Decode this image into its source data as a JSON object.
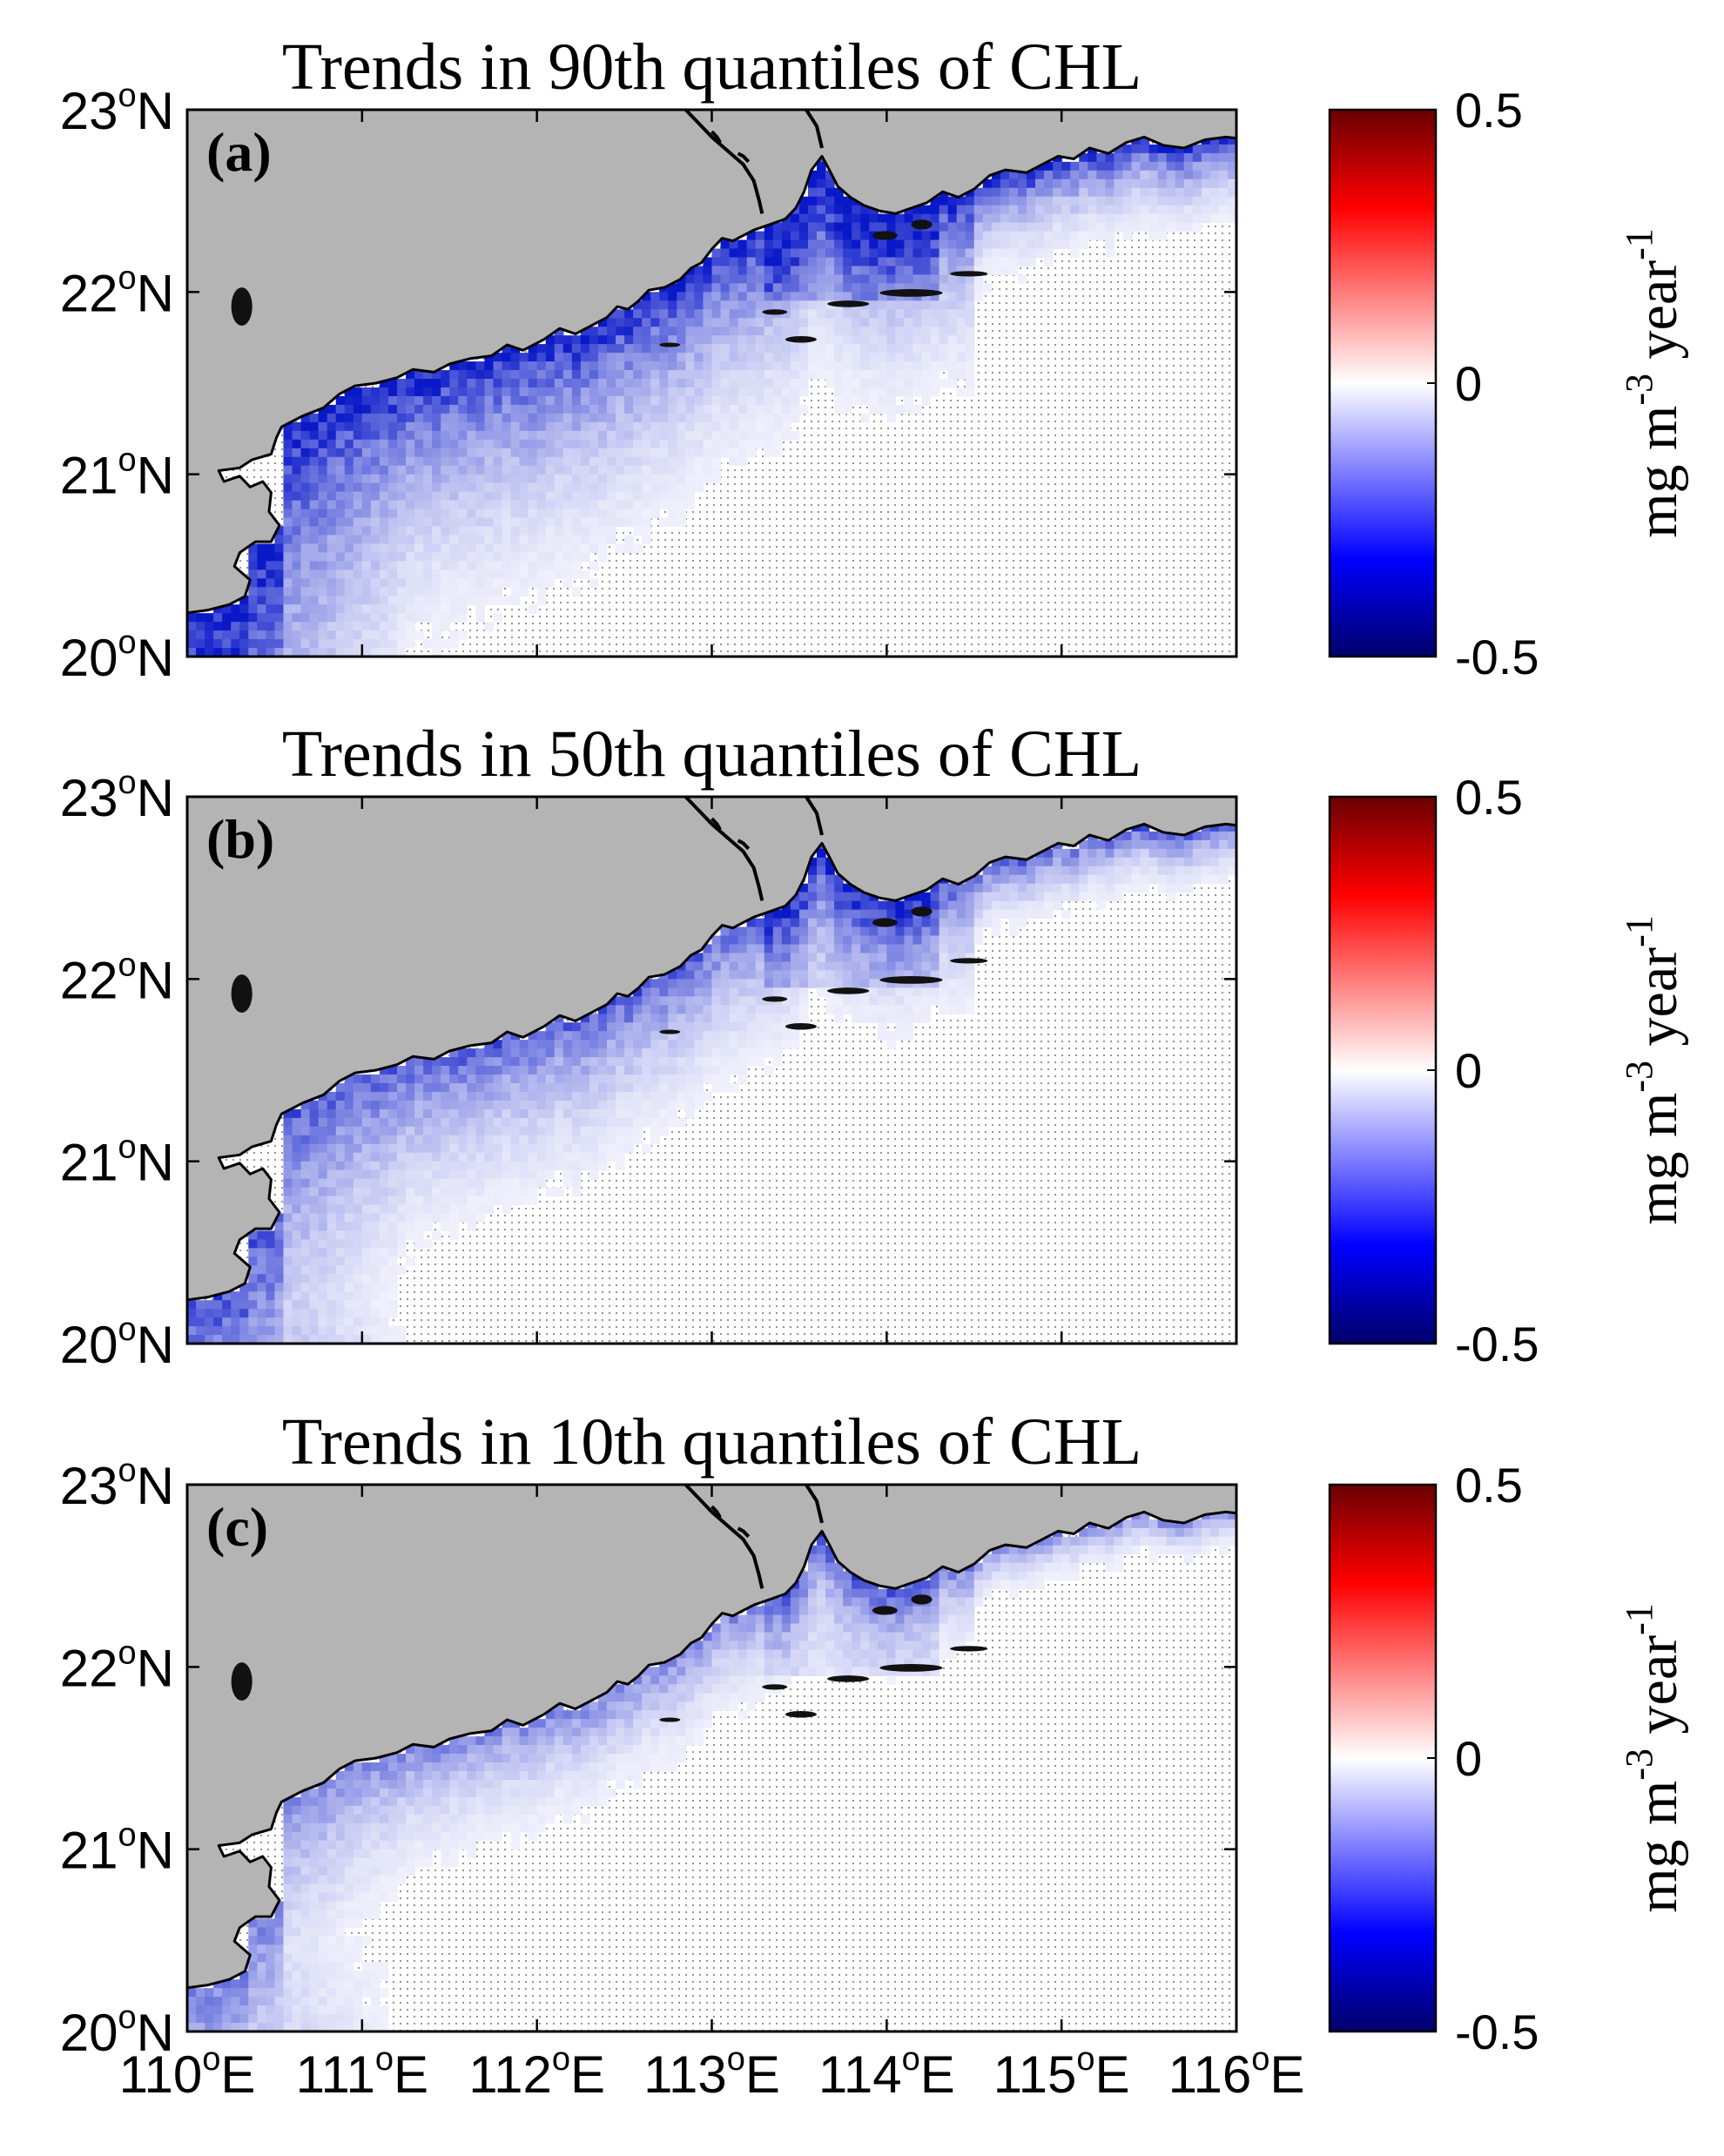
{
  "chart_data": [
    {
      "type": "heatmap",
      "panel_label": "(a)",
      "title": "Trends in 90th quantiles of CHL",
      "quantile": 90,
      "intensity": 1.0,
      "xlim": [
        110,
        116
      ],
      "ylim": [
        20,
        23
      ],
      "x_ticks": [
        110,
        111,
        112,
        113,
        114,
        115,
        116
      ],
      "y_ticks": [
        {
          "num": "20",
          "sup": "o",
          "hem": "N"
        },
        {
          "num": "21",
          "sup": "o",
          "hem": "N"
        },
        {
          "num": "22",
          "sup": "o",
          "hem": "N"
        },
        {
          "num": "23",
          "sup": "o",
          "hem": "N"
        }
      ],
      "colorbar": {
        "min": -0.5,
        "max": 0.5,
        "ticks": [
          "-0.5",
          "0",
          "0.5"
        ],
        "unit": "mg m-3 year-1"
      }
    },
    {
      "type": "heatmap",
      "panel_label": "(b)",
      "title": "Trends in 50th quantiles of CHL",
      "quantile": 50,
      "intensity": 0.75,
      "xlim": [
        110,
        116
      ],
      "ylim": [
        20,
        23
      ],
      "x_ticks": [
        110,
        111,
        112,
        113,
        114,
        115,
        116
      ],
      "y_ticks": [
        {
          "num": "20",
          "sup": "o",
          "hem": "N"
        },
        {
          "num": "21",
          "sup": "o",
          "hem": "N"
        },
        {
          "num": "22",
          "sup": "o",
          "hem": "N"
        },
        {
          "num": "23",
          "sup": "o",
          "hem": "N"
        }
      ],
      "colorbar": {
        "min": -0.5,
        "max": 0.5,
        "ticks": [
          "-0.5",
          "0",
          "0.5"
        ],
        "unit": "mg m-3 year-1"
      }
    },
    {
      "type": "heatmap",
      "panel_label": "(c)",
      "title": "Trends in 10th quantiles of CHL",
      "quantile": 10,
      "intensity": 0.55,
      "xlim": [
        110,
        116
      ],
      "ylim": [
        20,
        23
      ],
      "x_ticks": [
        110,
        111,
        112,
        113,
        114,
        115,
        116
      ],
      "y_ticks": [
        {
          "num": "20",
          "sup": "o",
          "hem": "N"
        },
        {
          "num": "21",
          "sup": "o",
          "hem": "N"
        },
        {
          "num": "22",
          "sup": "o",
          "hem": "N"
        },
        {
          "num": "23",
          "sup": "o",
          "hem": "N"
        }
      ],
      "colorbar": {
        "min": -0.5,
        "max": 0.5,
        "ticks": [
          "-0.5",
          "0",
          "0.5"
        ],
        "unit": "mg m-3 year-1"
      }
    }
  ],
  "x_axis_labels": [
    {
      "num": "110",
      "sup": "o",
      "hem": "E"
    },
    {
      "num": "111",
      "sup": "o",
      "hem": "E"
    },
    {
      "num": "112",
      "sup": "o",
      "hem": "E"
    },
    {
      "num": "113",
      "sup": "o",
      "hem": "E"
    },
    {
      "num": "114",
      "sup": "o",
      "hem": "E"
    },
    {
      "num": "115",
      "sup": "o",
      "hem": "E"
    },
    {
      "num": "116",
      "sup": "o",
      "hem": "E"
    }
  ],
  "colorbar_unit_parts": {
    "base": "mg m",
    "exp1": "-3",
    "mid": " year",
    "exp2": "-1"
  },
  "colors": {
    "land": "#b4b4b4",
    "coast": "#000000",
    "sea": "#ffffff",
    "strong_negative": "#1020c8",
    "cb_low": "#00006a",
    "cb_mid": "#ffffff",
    "cb_high": "#6a0000"
  }
}
